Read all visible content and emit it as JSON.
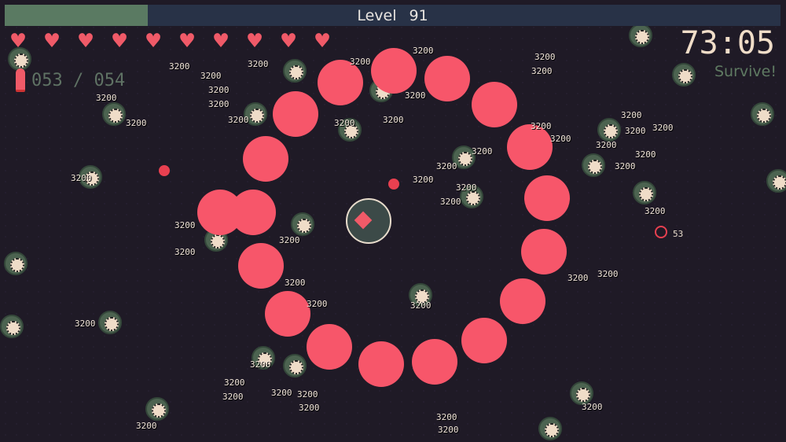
{
  "hud": {
    "level_label": "Level",
    "level_value": "91",
    "xp_progress": 0.184,
    "hearts": 10,
    "ammo": "053 / 054",
    "timer": "73:05",
    "objective": "Survive!",
    "target_count": "53"
  },
  "damage_text": "3200",
  "colors": {
    "xp_fill": "#5a7a62",
    "xp_bg": "#283247",
    "orb": "#f7566a",
    "heart": "#f05a68",
    "background": "#1f1a26"
  },
  "icons": {
    "heart": "heart-icon",
    "ammo": "bullet-icon",
    "target": "crosshair-icon"
  }
}
